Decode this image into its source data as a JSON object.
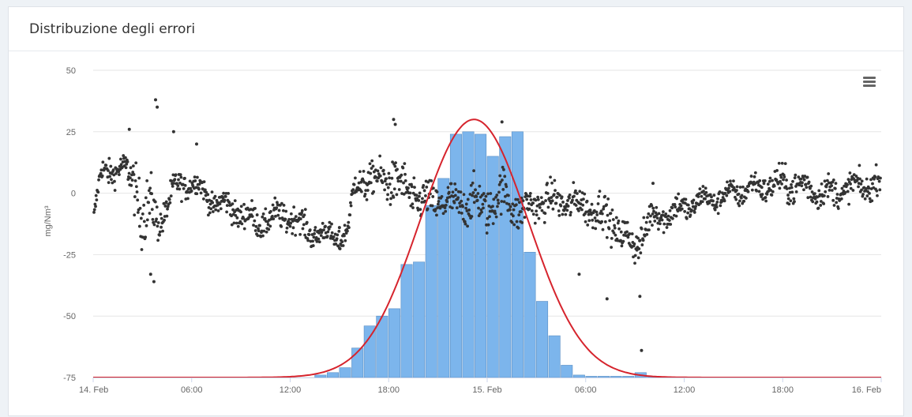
{
  "panel": {
    "title": "Distribuzione degli errori"
  },
  "chart_data": {
    "type": "scatter",
    "title": "Distribuzione degli errori",
    "ylabel": "mg/Nm³",
    "ylim": [
      -75,
      50
    ],
    "yticks": [
      50,
      25,
      0,
      -25,
      -50,
      -75
    ],
    "xticks": [
      {
        "h": 0,
        "label": "14. Feb"
      },
      {
        "h": 6,
        "label": "06:00"
      },
      {
        "h": 12,
        "label": "12:00"
      },
      {
        "h": 18,
        "label": "18:00"
      },
      {
        "h": 24,
        "label": "15. Feb"
      },
      {
        "h": 30,
        "label": "06:00"
      },
      {
        "h": 36,
        "label": "12:00"
      },
      {
        "h": 42,
        "label": "18:00"
      },
      {
        "h": 48,
        "label": "16. Feb"
      }
    ],
    "xlim_hours": [
      0,
      48
    ],
    "grid": true,
    "colors": {
      "scatter": "#333333",
      "bars": "#7cb5ec",
      "curve": "#d6242d",
      "grid": "#e6e6e6"
    },
    "scatter_profile": {
      "hours": [
        0,
        0.5,
        1,
        2,
        2.5,
        3,
        3.5,
        4,
        5,
        6,
        7,
        8,
        9,
        10,
        11,
        12,
        13,
        14,
        15,
        15.5,
        16,
        17,
        18,
        19,
        20,
        21,
        22,
        23,
        24,
        25,
        26,
        27,
        28,
        29,
        30,
        31,
        32,
        33,
        34,
        35,
        36,
        37,
        38,
        39,
        40,
        41,
        42,
        43,
        44,
        45,
        46,
        47,
        48
      ],
      "values": [
        -12,
        8,
        10,
        9,
        5,
        -10,
        -5,
        -12,
        2,
        5,
        -2,
        -5,
        -8,
        -12,
        -10,
        -9,
        -15,
        -17,
        -18,
        -16,
        5,
        5,
        6,
        2,
        -4,
        -3,
        -5,
        -3,
        -6,
        0,
        -8,
        -4,
        -3,
        -4,
        -5,
        -8,
        -15,
        -22,
        -10,
        -8,
        -6,
        -3,
        -2,
        0,
        2,
        3,
        4,
        3,
        1,
        0,
        2,
        3,
        4
      ],
      "spread": [
        3,
        4,
        5,
        4,
        10,
        12,
        10,
        6,
        5,
        4,
        4,
        5,
        5,
        5,
        5,
        5,
        5,
        4,
        4,
        4,
        6,
        6,
        8,
        8,
        7,
        7,
        7,
        8,
        8,
        8,
        7,
        6,
        6,
        6,
        6,
        7,
        6,
        6,
        6,
        5,
        5,
        4,
        4,
        4,
        4,
        5,
        6,
        6,
        5,
        5,
        5,
        5,
        5
      ]
    },
    "scatter_outliers": [
      {
        "h": 3.8,
        "v": 38
      },
      {
        "h": 3.9,
        "v": 35
      },
      {
        "h": 3.7,
        "v": -36
      },
      {
        "h": 3.5,
        "v": -33
      },
      {
        "h": 4.9,
        "v": 25
      },
      {
        "h": 6.3,
        "v": 20
      },
      {
        "h": 2.2,
        "v": 26
      },
      {
        "h": 18.3,
        "v": 30
      },
      {
        "h": 18.4,
        "v": 28
      },
      {
        "h": 24.9,
        "v": 29
      },
      {
        "h": 29.6,
        "v": -33
      },
      {
        "h": 31.3,
        "v": -43
      },
      {
        "h": 33.3,
        "v": -42
      },
      {
        "h": 33.4,
        "v": -64
      },
      {
        "h": 34.1,
        "v": 4
      },
      {
        "h": 15,
        "v": -14
      }
    ],
    "histogram": {
      "bin_start_hours": [
        13.5,
        14.25,
        15,
        15.75,
        16.5,
        17.25,
        18,
        18.75,
        19.5,
        20.25,
        21,
        21.75,
        22.5,
        23.25,
        24,
        24.75,
        25.5,
        26.25,
        27,
        27.75,
        28.5,
        29.25,
        30,
        30.75,
        31.5,
        32.25,
        33,
        33.75
      ],
      "bin_width_hours": 0.75,
      "values": [
        -74,
        -73,
        -71,
        -63,
        -54,
        -50,
        -47,
        -29,
        -28,
        -5,
        6,
        24,
        25,
        24,
        15,
        23,
        25,
        -24,
        -44,
        -58,
        -70,
        -74,
        -74.5,
        -74.5,
        -74.5,
        -74.5,
        -73,
        -74.5
      ],
      "baseline": -75
    },
    "normal_curve": {
      "mean_hours": 23.2,
      "sigma_hours": 3.3,
      "peak": 30,
      "baseline": -75
    }
  }
}
